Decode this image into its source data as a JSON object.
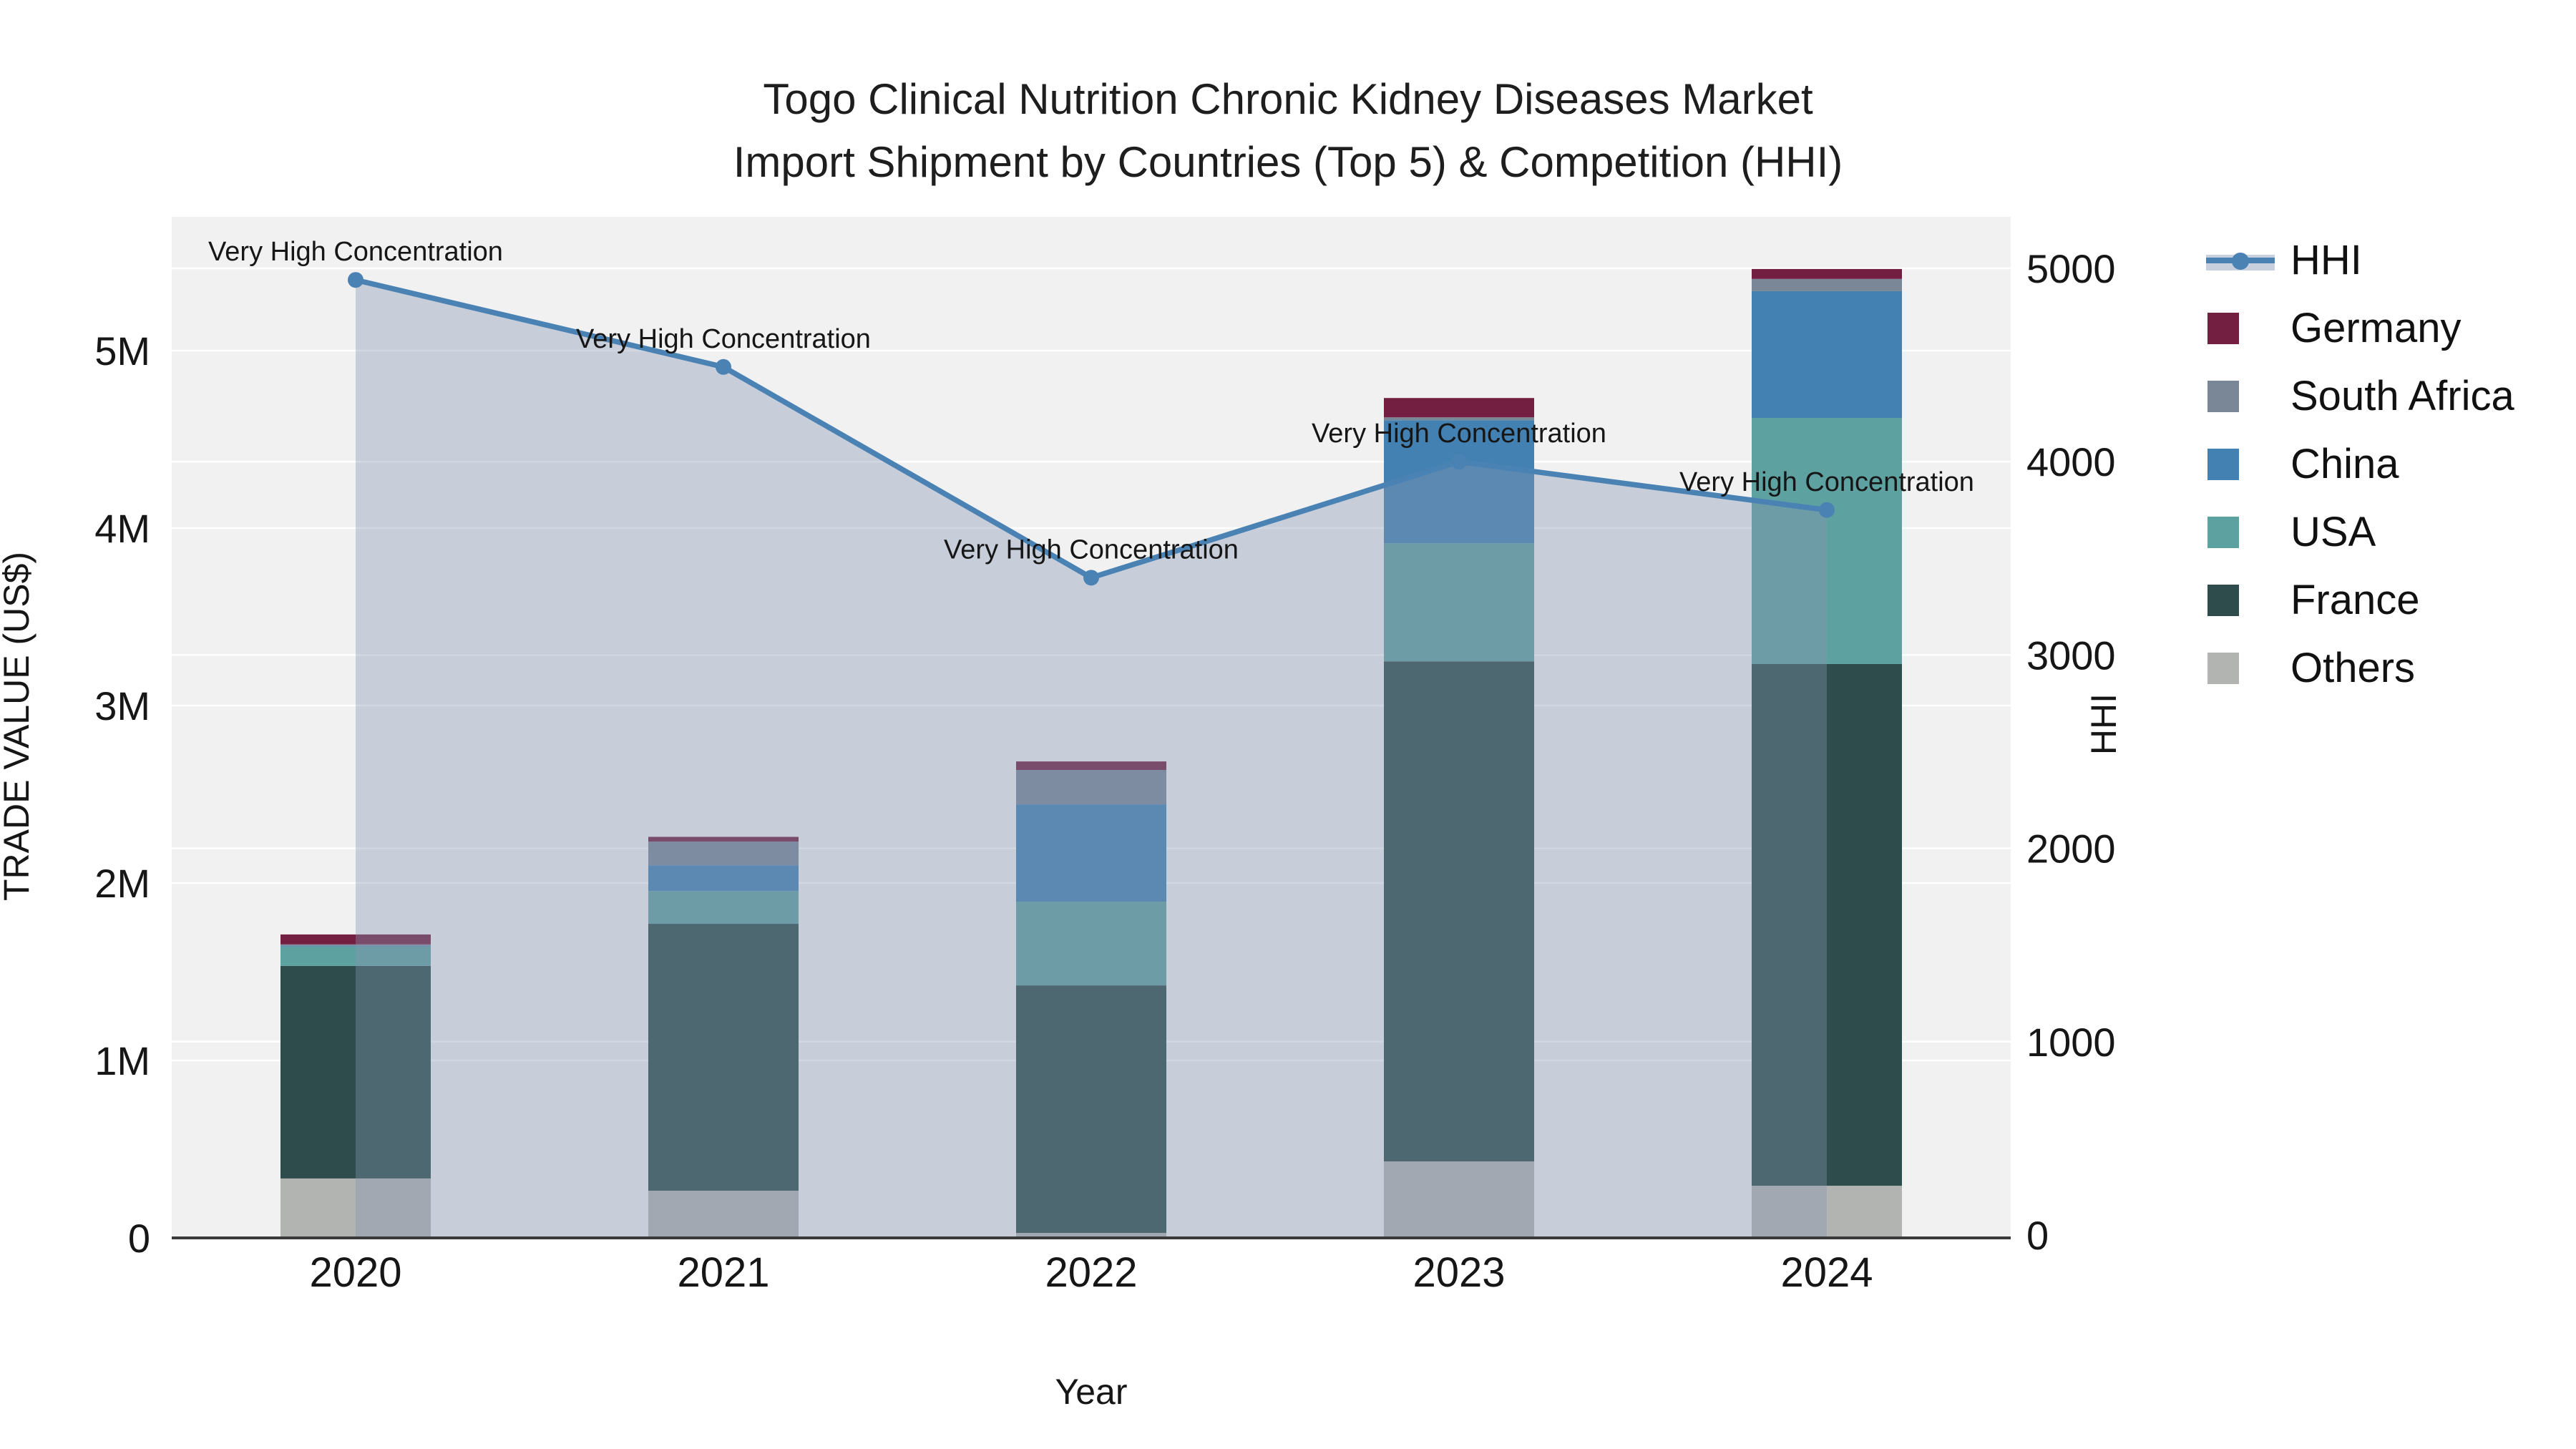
{
  "title": {
    "line1": "Togo Clinical Nutrition Chronic Kidney Diseases Market",
    "line2": "Import Shipment by Countries (Top 5) & Competition (HHI)"
  },
  "axes": {
    "x_title": "Year",
    "y_left_title": "TRADE VALUE (US$)",
    "y_right_title": "HHI",
    "y_left_ticks": [
      {
        "label": "0",
        "value": 0
      },
      {
        "label": "1M",
        "value": 1000000
      },
      {
        "label": "2M",
        "value": 2000000
      },
      {
        "label": "3M",
        "value": 3000000
      },
      {
        "label": "4M",
        "value": 4000000
      },
      {
        "label": "5M",
        "value": 5000000
      }
    ],
    "y_right_ticks": [
      {
        "label": "0",
        "value": 0
      },
      {
        "label": "1000",
        "value": 1000
      },
      {
        "label": "2000",
        "value": 2000
      },
      {
        "label": "3000",
        "value": 3000
      },
      {
        "label": "4000",
        "value": 4000
      },
      {
        "label": "5000",
        "value": 5000
      }
    ]
  },
  "chart_data": {
    "type": "composite",
    "subtypes": [
      "stacked-bar",
      "line-area"
    ],
    "categories": [
      "2020",
      "2021",
      "2022",
      "2023",
      "2024"
    ],
    "bar_value_unit": "US$",
    "ylim_left": [
      0,
      5780000
    ],
    "ylim_right": [
      0,
      5300
    ],
    "grid": true,
    "legend_position": "right",
    "series": [
      {
        "name": "Others",
        "color": "#b2b4b1",
        "values": [
          335000,
          266000,
          28000,
          431000,
          294000
        ]
      },
      {
        "name": "France",
        "color": "#2d4c4b",
        "values": [
          1198000,
          1504000,
          1395000,
          2818000,
          2940000
        ]
      },
      {
        "name": "USA",
        "color": "#5ea1a1",
        "values": [
          109000,
          185000,
          472000,
          665000,
          1387000
        ]
      },
      {
        "name": "China",
        "color": "#4381b2",
        "values": [
          4000,
          145000,
          548000,
          694000,
          714000
        ]
      },
      {
        "name": "South Africa",
        "color": "#7a8797",
        "values": [
          8000,
          133000,
          194000,
          16000,
          69000
        ]
      },
      {
        "name": "Germany",
        "color": "#731f41",
        "values": [
          56000,
          27000,
          48000,
          109000,
          56000
        ]
      }
    ],
    "line": {
      "name": "HHI",
      "axis": "right",
      "color": "#4a82b4",
      "area_fill": "rgba(133,151,179,0.38)",
      "values": [
        4940,
        4490,
        3400,
        4000,
        3750
      ],
      "annotations": [
        "Very High Concentration",
        "Very High Concentration",
        "Very High Concentration",
        "Very High Concentration",
        "Very High Concentration"
      ]
    },
    "legend_order": [
      "HHI",
      "Germany",
      "South Africa",
      "China",
      "USA",
      "France",
      "Others"
    ]
  },
  "colors": {
    "plot_background": "#f1f1f1",
    "grid_line": "#ffffff",
    "axis_line": "#3a3a3a",
    "text": "#161616"
  }
}
